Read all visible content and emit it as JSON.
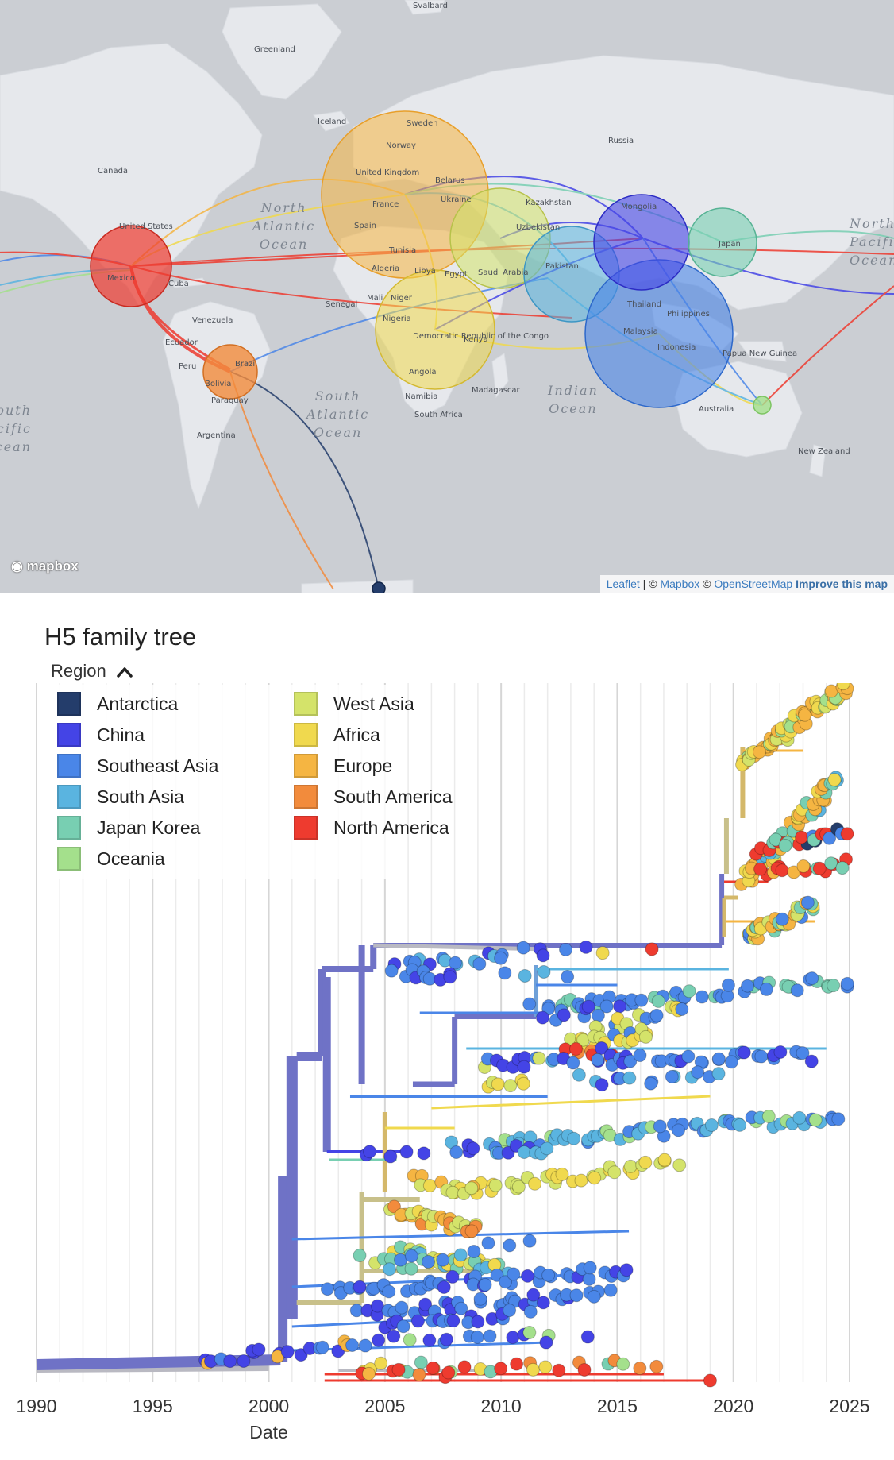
{
  "map": {
    "place_labels": [
      {
        "name": "svalbard",
        "text": "Svalbard"
      },
      {
        "name": "greenland",
        "text": "Greenland"
      },
      {
        "name": "iceland",
        "text": "Iceland"
      },
      {
        "name": "canada",
        "text": "Canada"
      },
      {
        "name": "united-states",
        "text": "United States"
      },
      {
        "name": "mexico",
        "text": "Mexico"
      },
      {
        "name": "cuba",
        "text": "Cuba"
      },
      {
        "name": "venezuela",
        "text": "Venezuela"
      },
      {
        "name": "ecuador",
        "text": "Ecuador"
      },
      {
        "name": "peru",
        "text": "Peru"
      },
      {
        "name": "brazil",
        "text": "Brazil"
      },
      {
        "name": "bolivia",
        "text": "Bolivia"
      },
      {
        "name": "paraguay",
        "text": "Paraguay"
      },
      {
        "name": "argentina",
        "text": "Argentina"
      },
      {
        "name": "russia",
        "text": "Russia"
      },
      {
        "name": "sweden",
        "text": "Sweden"
      },
      {
        "name": "norway",
        "text": "Norway"
      },
      {
        "name": "united-kingdom",
        "text": "United Kingdom"
      },
      {
        "name": "belarus",
        "text": "Belarus"
      },
      {
        "name": "ukraine",
        "text": "Ukraine"
      },
      {
        "name": "france",
        "text": "France"
      },
      {
        "name": "spain",
        "text": "Spain"
      },
      {
        "name": "tunisia",
        "text": "Tunisia"
      },
      {
        "name": "algeria",
        "text": "Algeria"
      },
      {
        "name": "libya",
        "text": "Libya"
      },
      {
        "name": "egypt",
        "text": "Egypt"
      },
      {
        "name": "kazakhstan",
        "text": "Kazakhstan"
      },
      {
        "name": "uzbekistan",
        "text": "Uzbekistan"
      },
      {
        "name": "mongolia",
        "text": "Mongolia"
      },
      {
        "name": "japan",
        "text": "Japan"
      },
      {
        "name": "pakistan",
        "text": "Pakistan"
      },
      {
        "name": "saudi-arabia",
        "text": "Saudi Arabia"
      },
      {
        "name": "mali",
        "text": "Mali"
      },
      {
        "name": "niger",
        "text": "Niger"
      },
      {
        "name": "senegal",
        "text": "Senegal"
      },
      {
        "name": "nigeria",
        "text": "Nigeria"
      },
      {
        "name": "drc",
        "text": "Democratic Republic of the Congo"
      },
      {
        "name": "kenya",
        "text": "Kenya"
      },
      {
        "name": "angola",
        "text": "Angola"
      },
      {
        "name": "namibia",
        "text": "Namibia"
      },
      {
        "name": "south-africa",
        "text": "South Africa"
      },
      {
        "name": "madagascar",
        "text": "Madagascar"
      },
      {
        "name": "thailand",
        "text": "Thailand"
      },
      {
        "name": "philippines",
        "text": "Philippines"
      },
      {
        "name": "malaysia",
        "text": "Malaysia"
      },
      {
        "name": "indonesia",
        "text": "Indonesia"
      },
      {
        "name": "papua-new-guinea",
        "text": "Papua New Guinea"
      },
      {
        "name": "australia",
        "text": "Australia"
      },
      {
        "name": "new-zealand",
        "text": "New Zealand"
      }
    ],
    "ocean_labels": [
      {
        "name": "north-atlantic",
        "text": "North Atlantic Ocean"
      },
      {
        "name": "south-atlantic",
        "text": "South Atlantic Ocean"
      },
      {
        "name": "indian-ocean",
        "text": "Indian Ocean"
      },
      {
        "name": "north-pacific",
        "text": "North Pacific Ocean"
      },
      {
        "name": "south-pacific",
        "text": "South Pacific Ocean"
      }
    ],
    "mapbox_logo": "mapbox",
    "attribution": {
      "leaflet": "Leaflet",
      "sep1": "|",
      "copy1": "©",
      "mapbox": "Mapbox",
      "copy2": "©",
      "osm": "OpenStreetMap",
      "improve": "Improve this map"
    }
  },
  "tree": {
    "title": "H5 family tree",
    "legend_title": "Region",
    "legend_toggle_icon": "chevron-up-icon",
    "legend": [
      {
        "label": "Antarctica",
        "color": "#243d6b"
      },
      {
        "label": "China",
        "color": "#4444e6"
      },
      {
        "label": "Southeast Asia",
        "color": "#4a86e8"
      },
      {
        "label": "South Asia",
        "color": "#5ab4e0"
      },
      {
        "label": "Japan Korea",
        "color": "#78cfb2"
      },
      {
        "label": "Oceania",
        "color": "#a4e08c"
      },
      {
        "label": "West Asia",
        "color": "#d4e36a"
      },
      {
        "label": "Africa",
        "color": "#f0d94e"
      },
      {
        "label": "Europe",
        "color": "#f5b542"
      },
      {
        "label": "South America",
        "color": "#f28b3c"
      },
      {
        "label": "North America",
        "color": "#ee3b2f"
      }
    ],
    "x_ticks": [
      "1990",
      "1995",
      "2000",
      "2005",
      "2010",
      "2015",
      "2020",
      "2025"
    ],
    "x_tick_values": [
      1990,
      1995,
      2000,
      2005,
      2010,
      2015,
      2020,
      2025
    ],
    "x_label": "Date",
    "x_range": [
      1990,
      2025
    ]
  }
}
